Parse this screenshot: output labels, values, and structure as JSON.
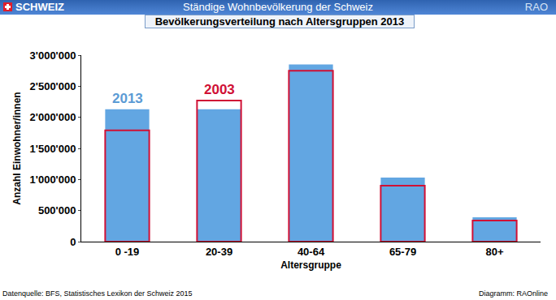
{
  "header": {
    "left": "SCHWEIZ",
    "center": "Ständige Wohnbevölkerung der Schweiz",
    "right": "RAO"
  },
  "footer": {
    "left": "Datenquelle: BFS, Statistisches Lexikon der Schweiz 2015",
    "right": "Diagramm: RAOnline"
  },
  "chart_data": {
    "type": "bar",
    "title": "Bevölkerungsverteilung nach Altersgruppen 2013",
    "x_label": "Altersgruppe",
    "y_label": "Anzahl Einwohner/innen",
    "categories": [
      "0 -19",
      "20-39",
      "40-64",
      "65-79",
      "80+"
    ],
    "series": [
      {
        "name": "2013",
        "color": "#62a6e2",
        "marker": "filled",
        "values": [
          2130000,
          2130000,
          2850000,
          1030000,
          390000
        ]
      },
      {
        "name": "2003",
        "color": "#d01035",
        "marker": "outline",
        "values": [
          1790000,
          2270000,
          2750000,
          900000,
          340000
        ]
      }
    ],
    "annotations": [
      {
        "text": "2013",
        "category": "0 -19",
        "series": "2013",
        "color": "#5b9bd5"
      },
      {
        "text": "2003",
        "category": "20-39",
        "series": "2003",
        "color": "#d01035"
      }
    ],
    "ylim": [
      0,
      3000000
    ],
    "yticks": [
      0,
      {
        "value": 500000,
        "label": "500'000"
      },
      {
        "value": 1000000,
        "label": "1'000'000"
      },
      {
        "value": 1500000,
        "label": "1'500'000"
      },
      {
        "value": 2000000,
        "label": "2'000'000"
      },
      {
        "value": 2500000,
        "label": "2'500'000"
      },
      {
        "value": 3000000,
        "label": "3'000'000"
      }
    ],
    "grid": false,
    "legend": "none"
  }
}
